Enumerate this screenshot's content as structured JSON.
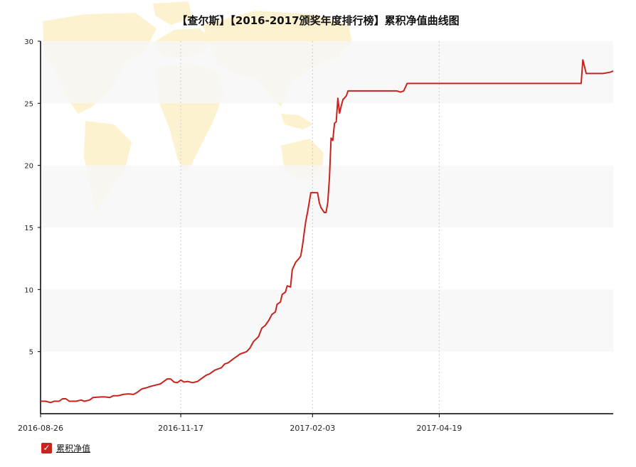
{
  "chart_data": {
    "type": "line",
    "title": "【查尔斯】【2016-2017颁奖年度排行榜】累积净值曲线图",
    "xlabel": "",
    "ylabel": "",
    "ylim": [
      0,
      30
    ],
    "yticks": [
      5,
      10,
      15,
      20,
      25,
      30
    ],
    "xlim": [
      "2016-08-26",
      "2017-07-31"
    ],
    "xticks": [
      "2016-08-26",
      "2016-11-17",
      "2017-02-03",
      "2017-04-19"
    ],
    "grid": "vertical dotted lines, alternating horizontal bands",
    "legend_position": "bottom-left",
    "colors": {
      "line": "#c8231e",
      "band": "#f7f7f7",
      "map": "#fdf2cf"
    },
    "series": [
      {
        "name": "累积净值",
        "points": [
          [
            "2016-08-26",
            1.0
          ],
          [
            "2016-08-29",
            1.0
          ],
          [
            "2016-09-01",
            0.9
          ],
          [
            "2016-09-03",
            1.0
          ],
          [
            "2016-09-06",
            1.0
          ],
          [
            "2016-09-08",
            1.2
          ],
          [
            "2016-09-10",
            1.2
          ],
          [
            "2016-09-12",
            1.0
          ],
          [
            "2016-09-16",
            1.0
          ],
          [
            "2016-09-19",
            1.1
          ],
          [
            "2016-09-21",
            1.0
          ],
          [
            "2016-09-24",
            1.1
          ],
          [
            "2016-09-26",
            1.3
          ],
          [
            "2016-10-01",
            1.35
          ],
          [
            "2016-10-03",
            1.35
          ],
          [
            "2016-10-06",
            1.3
          ],
          [
            "2016-10-08",
            1.45
          ],
          [
            "2016-10-11",
            1.45
          ],
          [
            "2016-10-14",
            1.55
          ],
          [
            "2016-10-17",
            1.6
          ],
          [
            "2016-10-20",
            1.55
          ],
          [
            "2016-10-22",
            1.7
          ],
          [
            "2016-10-25",
            2.0
          ],
          [
            "2016-10-28",
            2.1
          ],
          [
            "2016-10-30",
            2.2
          ],
          [
            "2016-11-02",
            2.3
          ],
          [
            "2016-11-05",
            2.4
          ],
          [
            "2016-11-07",
            2.6
          ],
          [
            "2016-11-09",
            2.8
          ],
          [
            "2016-11-11",
            2.8
          ],
          [
            "2016-11-13",
            2.55
          ],
          [
            "2016-11-15",
            2.5
          ],
          [
            "2016-11-17",
            2.7
          ],
          [
            "2016-11-19",
            2.55
          ],
          [
            "2016-11-21",
            2.6
          ],
          [
            "2016-11-24",
            2.5
          ],
          [
            "2016-11-27",
            2.6
          ],
          [
            "2016-11-29",
            2.8
          ],
          [
            "2016-12-02",
            3.1
          ],
          [
            "2016-12-04",
            3.2
          ],
          [
            "2016-12-07",
            3.5
          ],
          [
            "2016-12-09",
            3.6
          ],
          [
            "2016-12-11",
            3.7
          ],
          [
            "2016-12-13",
            4.0
          ],
          [
            "2016-12-15",
            4.1
          ],
          [
            "2016-12-18",
            4.4
          ],
          [
            "2016-12-20",
            4.6
          ],
          [
            "2016-12-22",
            4.8
          ],
          [
            "2016-12-24",
            4.9
          ],
          [
            "2016-12-26",
            5.0
          ],
          [
            "2016-12-28",
            5.3
          ],
          [
            "2016-12-30",
            5.8
          ],
          [
            "2017-01-02",
            6.2
          ],
          [
            "2017-01-04",
            6.9
          ],
          [
            "2017-01-06",
            7.1
          ],
          [
            "2017-01-08",
            7.5
          ],
          [
            "2017-01-10",
            8.0
          ],
          [
            "2017-01-12",
            8.2
          ],
          [
            "2017-01-13",
            8.8
          ],
          [
            "2017-01-15",
            9.0
          ],
          [
            "2017-01-16",
            9.6
          ],
          [
            "2017-01-18",
            9.8
          ],
          [
            "2017-01-19",
            10.3
          ],
          [
            "2017-01-21",
            10.2
          ],
          [
            "2017-01-22",
            11.6
          ],
          [
            "2017-01-24",
            12.2
          ],
          [
            "2017-01-26",
            12.5
          ],
          [
            "2017-01-27",
            12.7
          ],
          [
            "2017-01-28",
            13.5
          ],
          [
            "2017-01-29",
            14.5
          ],
          [
            "2017-01-30",
            15.5
          ],
          [
            "2017-01-31",
            16.2
          ],
          [
            "2017-02-01",
            17.0
          ],
          [
            "2017-02-02",
            17.8
          ],
          [
            "2017-02-04",
            17.8
          ],
          [
            "2017-02-06",
            17.8
          ],
          [
            "2017-02-07",
            17.0
          ],
          [
            "2017-02-08",
            16.6
          ],
          [
            "2017-02-10",
            16.2
          ],
          [
            "2017-02-11",
            16.2
          ],
          [
            "2017-02-12",
            17.0
          ],
          [
            "2017-02-13",
            19.0
          ],
          [
            "2017-02-14",
            22.2
          ],
          [
            "2017-02-15",
            22.0
          ],
          [
            "2017-02-16",
            23.4
          ],
          [
            "2017-02-17",
            23.5
          ],
          [
            "2017-02-18",
            25.4
          ],
          [
            "2017-02-19",
            24.2
          ],
          [
            "2017-02-20",
            24.8
          ],
          [
            "2017-02-21",
            25.3
          ],
          [
            "2017-02-23",
            25.6
          ],
          [
            "2017-02-24",
            26.0
          ],
          [
            "2017-03-01",
            26.0
          ],
          [
            "2017-03-20",
            26.0
          ],
          [
            "2017-03-25",
            26.0
          ],
          [
            "2017-03-27",
            25.9
          ],
          [
            "2017-03-29",
            26.0
          ],
          [
            "2017-03-31",
            26.6
          ],
          [
            "2017-04-20",
            26.6
          ],
          [
            "2017-05-10",
            26.6
          ],
          [
            "2017-06-01",
            26.6
          ],
          [
            "2017-07-12",
            26.6
          ],
          [
            "2017-07-13",
            28.5
          ],
          [
            "2017-07-15",
            27.4
          ],
          [
            "2017-07-25",
            27.4
          ],
          [
            "2017-07-29",
            27.5
          ],
          [
            "2017-07-31",
            27.6
          ]
        ]
      }
    ]
  },
  "legend": {
    "check_icon": "check-icon"
  }
}
